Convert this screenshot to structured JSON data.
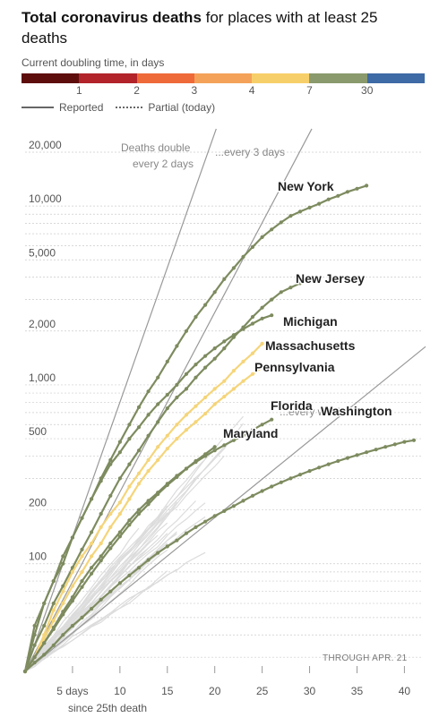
{
  "header": {
    "title_bold": "Total coronavirus deaths",
    "title_rest": " for places with at least 25 deaths"
  },
  "doubling_scale": {
    "label": "Current doubling time, in days",
    "colors": [
      "#5e0d0d",
      "#b2232a",
      "#ef6a39",
      "#f4a259",
      "#f7cf6a",
      "#8a9a6c",
      "#3e6aa5"
    ],
    "ticks": [
      "1",
      "2",
      "3",
      "4",
      "7",
      "30"
    ]
  },
  "legend": {
    "reported": "Reported",
    "partial": "Partial (today)"
  },
  "footer": {
    "through": "THROUGH APR. 21",
    "x_axis_first_line": "5 days",
    "x_axis_second_line": "since 25th death"
  },
  "reference_labels": {
    "double_2": [
      "Deaths double",
      "every 2 days"
    ],
    "double_3": "...every 3 days",
    "double_week": "...every week"
  },
  "colors": {
    "highlight_green": "#7d8b5f",
    "highlight_yellow": "#f5d57a",
    "background_lines": "#dcdcdc",
    "reference_lines": "#999999",
    "grid": "#cccccc"
  },
  "chart_data": {
    "type": "line",
    "title": "Total coronavirus deaths for places with at least 25 deaths",
    "xlabel": "since 25th death",
    "ylabel": "",
    "y_scale": "log",
    "x_range": [
      0,
      41
    ],
    "y_range": [
      25,
      20000
    ],
    "x_ticks": [
      5,
      10,
      15,
      20,
      25,
      30,
      35,
      40
    ],
    "x_tick_labels": [
      "5 days",
      "10",
      "15",
      "20",
      "25",
      "30",
      "35",
      "40"
    ],
    "y_ticks": [
      100,
      200,
      500,
      1000,
      2000,
      5000,
      10000,
      20000
    ],
    "y_tick_labels": [
      "100",
      "200",
      "500",
      "1,000",
      "2,000",
      "5,000",
      "10,000",
      "20,000"
    ],
    "reference_lines": [
      {
        "doubling_days": 2
      },
      {
        "doubling_days": 3
      },
      {
        "doubling_days": 7
      }
    ],
    "series": [
      {
        "name": "New York",
        "color": "green",
        "values": [
          25,
          45,
          60,
          80,
          100,
          140,
          180,
          230,
          300,
          380,
          480,
          600,
          750,
          920,
          1100,
          1350,
          1650,
          2000,
          2400,
          2800,
          3300,
          3900,
          4500,
          5200,
          5900,
          6700,
          7400,
          8100,
          8800,
          9300,
          9800,
          10300,
          10900,
          11400,
          12000,
          12500,
          13000
        ]
      },
      {
        "name": "New Jersey",
        "color": "green",
        "values": [
          25,
          35,
          45,
          60,
          75,
          95,
          120,
          150,
          190,
          240,
          300,
          360,
          430,
          520,
          620,
          740,
          850,
          950,
          1100,
          1250,
          1400,
          1600,
          1850,
          2100,
          2400,
          2700,
          3000,
          3300,
          3500,
          3700,
          3850
        ]
      },
      {
        "name": "Michigan",
        "color": "green",
        "values": [
          25,
          40,
          60,
          80,
          110,
          140,
          180,
          230,
          290,
          360,
          420,
          500,
          580,
          680,
          780,
          880,
          1000,
          1150,
          1300,
          1450,
          1600,
          1750,
          1900,
          2050,
          2200,
          2350,
          2450
        ]
      },
      {
        "name": "Massachusetts",
        "color": "yellow",
        "values": [
          25,
          30,
          40,
          55,
          70,
          90,
          110,
          130,
          160,
          190,
          220,
          270,
          320,
          380,
          450,
          520,
          600,
          680,
          760,
          850,
          950,
          1050,
          1200,
          1350,
          1500,
          1700
        ]
      },
      {
        "name": "Pennsylvania",
        "color": "yellow",
        "values": [
          25,
          30,
          38,
          48,
          60,
          75,
          90,
          110,
          130,
          160,
          190,
          230,
          280,
          330,
          380,
          440,
          500,
          560,
          620,
          690,
          780,
          860,
          950,
          1050,
          1150,
          1250
        ]
      },
      {
        "name": "Florida",
        "color": "green",
        "values": [
          25,
          30,
          36,
          44,
          54,
          65,
          80,
          95,
          110,
          130,
          150,
          175,
          200,
          225,
          250,
          280,
          310,
          340,
          370,
          400,
          430,
          460,
          490,
          520,
          560,
          600,
          640
        ]
      },
      {
        "name": "Washington",
        "color": "green",
        "values": [
          25,
          28,
          31,
          35,
          40,
          45,
          50,
          56,
          63,
          70,
          78,
          86,
          95,
          105,
          115,
          125,
          135,
          148,
          160,
          172,
          185,
          197,
          210,
          225,
          240,
          255,
          270,
          285,
          300,
          315,
          330,
          345,
          360,
          375,
          390,
          405,
          420,
          435,
          450,
          465,
          480,
          490
        ]
      },
      {
        "name": "Maryland",
        "color": "green",
        "values": [
          25,
          30,
          36,
          43,
          52,
          62,
          74,
          88,
          104,
          122,
          142,
          165,
          190,
          215,
          245,
          275,
          305,
          340,
          375,
          410,
          450
        ]
      }
    ]
  }
}
